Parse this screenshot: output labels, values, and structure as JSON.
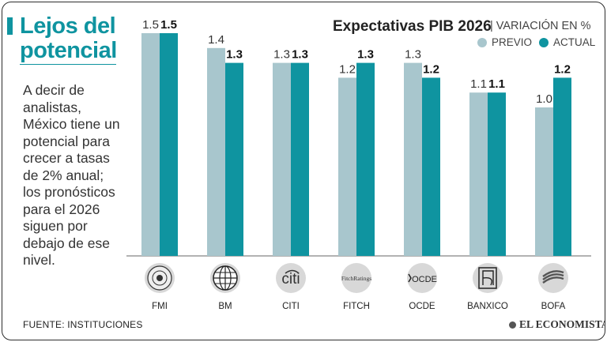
{
  "sidebar": {
    "title_line1": "Lejos del",
    "title_line2": "potencial",
    "description": [
      "A decir de",
      "analistas,",
      "México tiene un",
      "potencial para",
      "crecer a tasas",
      "de 2% anual;",
      "los pronósticos",
      "para el 2026",
      "siguen por",
      "debajo de ese",
      "nivel."
    ]
  },
  "footer": {
    "source": "FUENTE: INSTITUCIONES",
    "brand": "EL ECONOMISTA"
  },
  "colors": {
    "accent": "#0f94a0",
    "previo": "#a8c6cd",
    "actual": "#0f94a0"
  },
  "chart_data": {
    "type": "bar",
    "title": "Expectativas PIB 2026",
    "subtitle": "| VARIACIÓN EN %",
    "legend": [
      "PREVIO",
      "ACTUAL"
    ],
    "legend_position": "top-right",
    "categories": [
      "FMI",
      "BM",
      "CITI",
      "FITCH",
      "OCDE",
      "BANXICO",
      "BOFA"
    ],
    "logos": [
      "imf-seal-icon",
      "world-bank-globe-icon",
      "citi-logo-icon",
      "fitch-ratings-logo-icon",
      "oecd-logo-icon",
      "banxico-logo-icon",
      "bofa-flag-icon"
    ],
    "logo_texts": [
      "",
      "",
      "citi",
      "FitchRatings",
      "OCDE",
      "",
      ""
    ],
    "series": [
      {
        "name": "PREVIO",
        "values": [
          1.5,
          1.4,
          1.3,
          1.2,
          1.3,
          1.1,
          1.0
        ],
        "labels": [
          "1.5",
          "1.4",
          "1.3",
          "1.2",
          "1.3",
          "1.1",
          "1.0"
        ]
      },
      {
        "name": "ACTUAL",
        "values": [
          1.5,
          1.3,
          1.3,
          1.3,
          1.2,
          1.1,
          1.2
        ],
        "labels": [
          "1.5",
          "1.3",
          "1.3",
          "1.3",
          "1.2",
          "1.1",
          "1.2"
        ]
      }
    ],
    "ylim": [
      0,
      1.5
    ],
    "grid": false,
    "xlabel": "",
    "ylabel": ""
  }
}
